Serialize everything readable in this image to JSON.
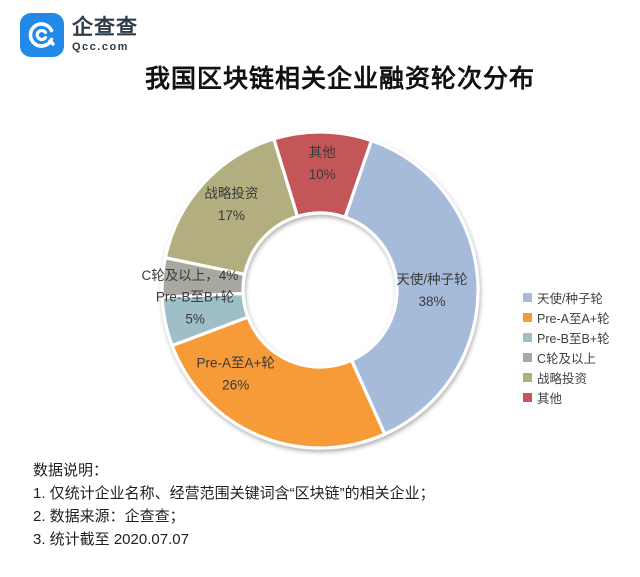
{
  "logo": {
    "name": "企查查",
    "domain": "Qcc.com",
    "brand_color": "#2389e8"
  },
  "title": "我国区块链相关企业融资轮次分布",
  "chart_data": {
    "type": "pie",
    "subtype": "donut",
    "title": "我国区块链相关企业融资轮次分布",
    "start_angle": 19,
    "inner_radius_ratio": 0.49,
    "legend_position": "right",
    "grid": false,
    "series": [
      {
        "label": "天使/种子轮",
        "value": 38,
        "color": "#a6bad9"
      },
      {
        "label": "Pre-A至A+轮",
        "value": 26,
        "color": "#f79a38"
      },
      {
        "label": "Pre-B至B+轮",
        "value": 5,
        "color": "#9ebec8"
      },
      {
        "label": "C轮及以上",
        "value": 4,
        "color": "#a8a8a0"
      },
      {
        "label": "战略投资",
        "value": 17,
        "color": "#b3ae7f"
      },
      {
        "label": "其他",
        "value": 10,
        "color": "#c4565a"
      }
    ],
    "slice_label_format": "name + percent"
  },
  "notes": {
    "heading": "数据说明：",
    "items": [
      "1. 仅统计企业名称、经营范围关键词含“区块链”的相关企业；",
      "2. 数据来源：企查查；",
      "3. 统计截至 2020.07.07"
    ]
  }
}
